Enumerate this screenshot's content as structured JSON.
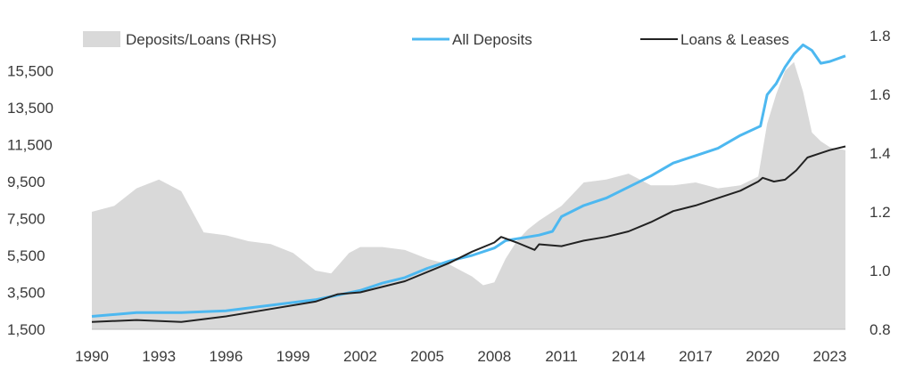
{
  "chart_data": {
    "type": "line",
    "title": "",
    "xlabel": "",
    "ylabel": "",
    "y2label": "",
    "x_ticks": [
      "1990",
      "1993",
      "1996",
      "1999",
      "2002",
      "2005",
      "2008",
      "2011",
      "2014",
      "2017",
      "2020",
      "2023"
    ],
    "y_ticks": [
      "1,500",
      "3,500",
      "5,500",
      "7,500",
      "9,500",
      "11,500",
      "13,500",
      "15,500"
    ],
    "y2_ticks": [
      "0.8",
      "1.0",
      "1.2",
      "1.4",
      "1.6",
      "1.8"
    ],
    "xlim": [
      1990,
      2023.7
    ],
    "ylim": [
      1500,
      17400
    ],
    "y2lim": [
      0.8,
      1.8
    ],
    "grid": false,
    "legend_position": "top",
    "legend": [
      {
        "label": "Deposits/Loans (RHS)",
        "kind": "area",
        "color": "#d9d9d9"
      },
      {
        "label": "All Deposits",
        "kind": "line",
        "color": "#4db8f0"
      },
      {
        "label": "Loans & Leases",
        "kind": "line",
        "color": "#222222"
      }
    ],
    "series": [
      {
        "name": "All Deposits",
        "axis": "left",
        "color": "#4db8f0",
        "type": "line",
        "x": [
          1990,
          1992,
          1994,
          1996,
          1998,
          2000,
          2002,
          2003,
          2004,
          2005,
          2006,
          2007,
          2008,
          2008.5,
          2009,
          2010,
          2010.6,
          2011,
          2012,
          2013,
          2014,
          2015,
          2016,
          2017,
          2018,
          2019,
          2019.9,
          2020.2,
          2020.6,
          2021,
          2021.4,
          2021.8,
          2022.2,
          2022.6,
          2023,
          2023.7
        ],
        "y": [
          2200,
          2400,
          2400,
          2500,
          2800,
          3100,
          3600,
          4000,
          4300,
          4800,
          5200,
          5500,
          5900,
          6300,
          6400,
          6600,
          6800,
          7600,
          8200,
          8600,
          9200,
          9800,
          10500,
          10900,
          11300,
          12000,
          12500,
          14200,
          14800,
          15700,
          16400,
          16900,
          16600,
          15900,
          16000,
          16300
        ]
      },
      {
        "name": "Loans & Leases",
        "axis": "left",
        "color": "#222222",
        "type": "line",
        "x": [
          1990,
          1992,
          1994,
          1996,
          1998,
          2000,
          2001,
          2002,
          2004,
          2006,
          2007,
          2008,
          2008.3,
          2009,
          2009.8,
          2010,
          2011,
          2012,
          2013,
          2014,
          2015,
          2016,
          2017,
          2018,
          2019,
          2019.8,
          2020,
          2020.5,
          2021,
          2021.5,
          2022,
          2022.5,
          2023,
          2023.7
        ],
        "y": [
          1900,
          2000,
          1900,
          2200,
          2600,
          3000,
          3400,
          3500,
          4100,
          5100,
          5700,
          6200,
          6500,
          6200,
          5800,
          6100,
          6000,
          6300,
          6500,
          6800,
          7300,
          7900,
          8200,
          8600,
          9000,
          9500,
          9700,
          9500,
          9600,
          10100,
          10800,
          11000,
          11200,
          11400
        ]
      },
      {
        "name": "Deposits/Loans (RHS)",
        "axis": "right",
        "color": "#d9d9d9",
        "type": "area",
        "x": [
          1990,
          1991,
          1992,
          1993,
          1994,
          1995,
          1996,
          1997,
          1998,
          1999,
          2000,
          2000.7,
          2001.5,
          2002,
          2003,
          2004,
          2005,
          2006,
          2007,
          2007.5,
          2008,
          2008.5,
          2009,
          2009.5,
          2010,
          2011,
          2012,
          2013,
          2014,
          2015,
          2016,
          2017,
          2018,
          2019,
          2019.8,
          2020.2,
          2020.6,
          2021,
          2021.4,
          2021.8,
          2022.2,
          2022.6,
          2023,
          2023.7
        ],
        "y": [
          1.2,
          1.22,
          1.28,
          1.31,
          1.27,
          1.13,
          1.12,
          1.1,
          1.09,
          1.06,
          1.0,
          0.99,
          1.06,
          1.08,
          1.08,
          1.07,
          1.04,
          1.02,
          0.98,
          0.95,
          0.96,
          1.04,
          1.1,
          1.14,
          1.17,
          1.22,
          1.3,
          1.31,
          1.33,
          1.29,
          1.29,
          1.3,
          1.28,
          1.29,
          1.32,
          1.5,
          1.6,
          1.68,
          1.71,
          1.61,
          1.47,
          1.44,
          1.42,
          1.41
        ]
      }
    ]
  }
}
